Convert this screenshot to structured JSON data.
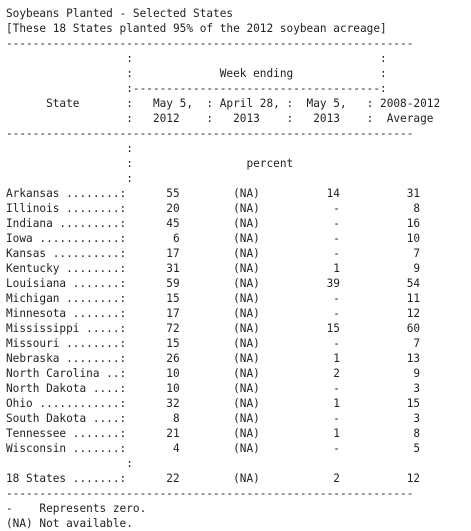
{
  "report": {
    "lines": [
      "Soybeans Planted - Selected States",
      "[These 18 States planted 95% of the 2012 soybean acreage]",
      "-------------------------------------------------------------",
      "                  :                                     :",
      "                  :             Week ending             :",
      "                  :-------------------------------------:",
      "      State       :   May 5,  : April 28, :  May 5,   : 2008-2012",
      "                  :   2012    :   2013    :   2013    :  Average",
      "-------------------------------------------------------------",
      "                  :",
      "                  :                 percent",
      "                  :",
      "Arkansas ........:      55        (NA)          14          31",
      "Illinois ........:      20        (NA)           -           8",
      "Indiana .........:      45        (NA)           -          16",
      "Iowa ............:       6        (NA)           -          10",
      "Kansas ..........:      17        (NA)           -           7",
      "Kentucky ........:      31        (NA)           1           9",
      "Louisiana .......:      59        (NA)          39          54",
      "Michigan ........:      15        (NA)           -          11",
      "Minnesota .......:      17        (NA)           -          12",
      "Mississippi .....:      72        (NA)          15          60",
      "Missouri ........:      15        (NA)           -           7",
      "Nebraska ........:      26        (NA)           1          13",
      "North Carolina ..:      10        (NA)           2           9",
      "North Dakota ....:      10        (NA)           -           3",
      "Ohio ............:      32        (NA)           1          15",
      "South Dakota ....:       8        (NA)           -           3",
      "Tennessee .......:      21        (NA)           1           8",
      "Wisconsin .......:       4        (NA)           -           5",
      "                  :",
      "18 States .......:      22        (NA)           2          12",
      "-------------------------------------------------------------",
      "-    Represents zero.",
      "(NA) Not available."
    ]
  }
}
